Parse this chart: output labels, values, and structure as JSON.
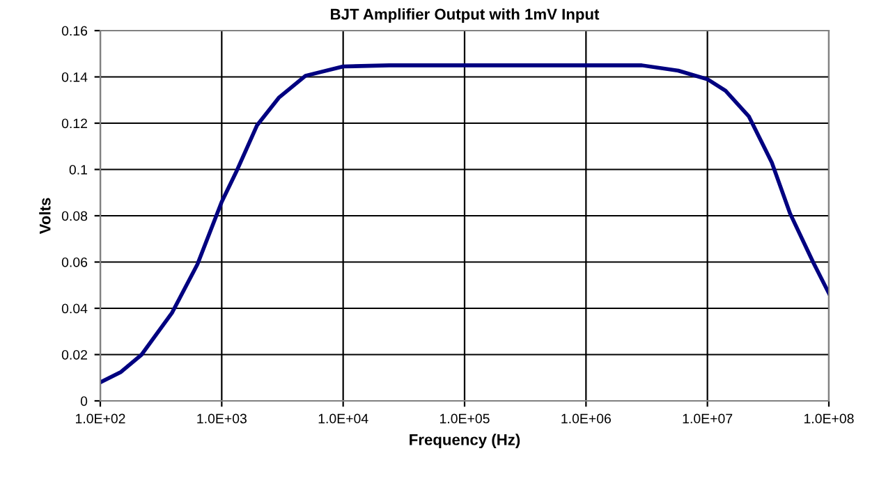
{
  "chart_data": {
    "type": "line",
    "title": "BJT Amplifier Output with 1mV Input",
    "xlabel": "Frequency (Hz)",
    "ylabel": "Volts",
    "log": "x",
    "grid": true,
    "marker": "none",
    "line_style": "solid",
    "xlim": [
      100,
      100000000
    ],
    "xticks": [
      {
        "value": 100,
        "label": "1.0E+02"
      },
      {
        "value": 1000,
        "label": "1.0E+03"
      },
      {
        "value": 10000,
        "label": "1.0E+04"
      },
      {
        "value": 100000,
        "label": "1.0E+05"
      },
      {
        "value": 1000000,
        "label": "1.0E+06"
      },
      {
        "value": 10000000,
        "label": "1.0E+07"
      },
      {
        "value": 100000000,
        "label": "1.0E+08"
      }
    ],
    "ylim": [
      0,
      0.16
    ],
    "yticks": [
      0,
      0.02,
      0.04,
      0.06,
      0.08,
      0.1,
      0.12,
      0.14,
      0.16
    ],
    "series": [
      {
        "color": "#000080",
        "x": [
          100,
          148,
          219,
          389,
          631,
          1000,
          1318,
          1950,
          2951,
          4898,
          10000,
          23990,
          100000,
          1000000,
          2880000,
          5750000,
          10000000,
          14100000,
          21900000,
          33900000,
          47900000,
          74100000,
          100000000
        ],
        "values": [
          0.008,
          0.0125,
          0.02,
          0.038,
          0.059,
          0.086,
          0.099,
          0.119,
          0.131,
          0.1405,
          0.1445,
          0.145,
          0.145,
          0.145,
          0.145,
          0.1427,
          0.139,
          0.134,
          0.123,
          0.103,
          0.081,
          0.06,
          0.0465
        ]
      }
    ]
  }
}
